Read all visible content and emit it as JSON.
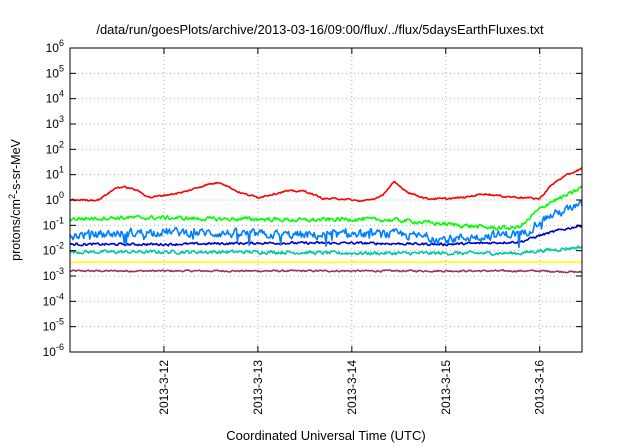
{
  "chart_data": {
    "type": "line",
    "title": "/data/run/goesPlots/archive/2013-03-16/09:00/flux/../flux/5daysEarthFluxes.txt",
    "xlabel": "Coordinated Universal Time (UTC)",
    "ylabel": "protons/cm^2-s-sr-MeV",
    "y_scale": "log",
    "ylim_exponent": [
      -6,
      6
    ],
    "yticks": [
      {
        "base": "10",
        "exp": "-6"
      },
      {
        "base": "10",
        "exp": "-5"
      },
      {
        "base": "10",
        "exp": "-4"
      },
      {
        "base": "10",
        "exp": "-3"
      },
      {
        "base": "10",
        "exp": "-2"
      },
      {
        "base": "10",
        "exp": "-1"
      },
      {
        "base": "10",
        "exp": "0"
      },
      {
        "base": "10",
        "exp": "1"
      },
      {
        "base": "10",
        "exp": "2"
      },
      {
        "base": "10",
        "exp": "3"
      },
      {
        "base": "10",
        "exp": "4"
      },
      {
        "base": "10",
        "exp": "5"
      },
      {
        "base": "10",
        "exp": "6"
      }
    ],
    "x_start": "2013-03-11",
    "x_end": "2013-03-16",
    "xticks": [
      {
        "label": "2013-3-12",
        "day": 1
      },
      {
        "label": "2013-3-13",
        "day": 2
      },
      {
        "label": "2013-3-14",
        "day": 3
      },
      {
        "label": "2013-3-15",
        "day": 4
      },
      {
        "label": "2013-3-16",
        "day": 5
      }
    ],
    "xlim_days": [
      0.0,
      5.45
    ],
    "grid": true,
    "series": [
      {
        "color": "#ff0000",
        "noise": 0.05,
        "x": [
          0,
          0.3,
          0.5,
          0.6,
          0.7,
          0.85,
          1.2,
          1.45,
          1.6,
          1.8,
          2.0,
          2.3,
          2.5,
          2.7,
          2.9,
          3.1,
          3.3,
          3.45,
          3.6,
          3.8,
          4.0,
          4.2,
          4.4,
          4.6,
          4.8,
          5.0,
          5.1,
          5.2,
          5.3,
          5.45
        ],
        "log10": [
          0.0,
          0.0,
          0.5,
          0.5,
          0.4,
          0.1,
          0.3,
          0.6,
          0.7,
          0.3,
          0.1,
          0.35,
          0.35,
          0.05,
          0.05,
          -0.05,
          0.1,
          0.7,
          0.3,
          0.05,
          0.05,
          0.1,
          0.25,
          0.15,
          0.1,
          0.05,
          0.5,
          0.8,
          1.0,
          1.25
        ]
      },
      {
        "color": "#00ff00",
        "noise": 0.12,
        "x": [
          0,
          0.5,
          1.0,
          1.5,
          2.0,
          2.5,
          3.0,
          3.5,
          4.0,
          4.5,
          4.75,
          4.85,
          4.95,
          5.1,
          5.3,
          5.45
        ],
        "log10": [
          -0.75,
          -0.7,
          -0.7,
          -0.75,
          -0.75,
          -0.8,
          -0.75,
          -0.8,
          -0.95,
          -1.1,
          -1.1,
          -0.9,
          -0.5,
          -0.1,
          0.2,
          0.5
        ]
      },
      {
        "color": "#0080ff",
        "noise": 0.25,
        "x": [
          0,
          1.0,
          2.0,
          2.6,
          3.0,
          3.5,
          4.0,
          4.5,
          4.85,
          5.0,
          5.2,
          5.45
        ],
        "log10": [
          -1.4,
          -1.25,
          -1.35,
          -1.4,
          -1.35,
          -1.35,
          -1.55,
          -1.4,
          -1.3,
          -0.8,
          -0.5,
          -0.2
        ]
      },
      {
        "color": "#0000cc",
        "noise": 0.07,
        "x": [
          0,
          1.0,
          2.0,
          3.0,
          4.0,
          4.8,
          5.0,
          5.2,
          5.45
        ],
        "log10": [
          -1.75,
          -1.75,
          -1.7,
          -1.7,
          -1.75,
          -1.65,
          -1.4,
          -1.2,
          -1.0
        ]
      },
      {
        "color": "#00c8a0",
        "noise": 0.1,
        "x": [
          0,
          1.0,
          2.0,
          3.0,
          4.0,
          4.8,
          5.0,
          5.2,
          5.45
        ],
        "log10": [
          -2.05,
          -2.05,
          -2.05,
          -2.1,
          -2.1,
          -2.1,
          -2.0,
          -1.95,
          -1.85
        ]
      },
      {
        "color": "#ffff00",
        "noise": 0.02,
        "x": [
          0,
          1.0,
          2.0,
          3.0,
          4.0,
          5.0,
          5.45
        ],
        "log10": [
          -2.45,
          -2.45,
          -2.45,
          -2.45,
          -2.45,
          -2.45,
          -2.45
        ]
      },
      {
        "color": "#993366",
        "noise": 0.05,
        "x": [
          0,
          1.0,
          2.0,
          3.0,
          4.0,
          5.0,
          5.45
        ],
        "log10": [
          -2.8,
          -2.8,
          -2.8,
          -2.8,
          -2.8,
          -2.8,
          -2.85
        ]
      }
    ]
  }
}
